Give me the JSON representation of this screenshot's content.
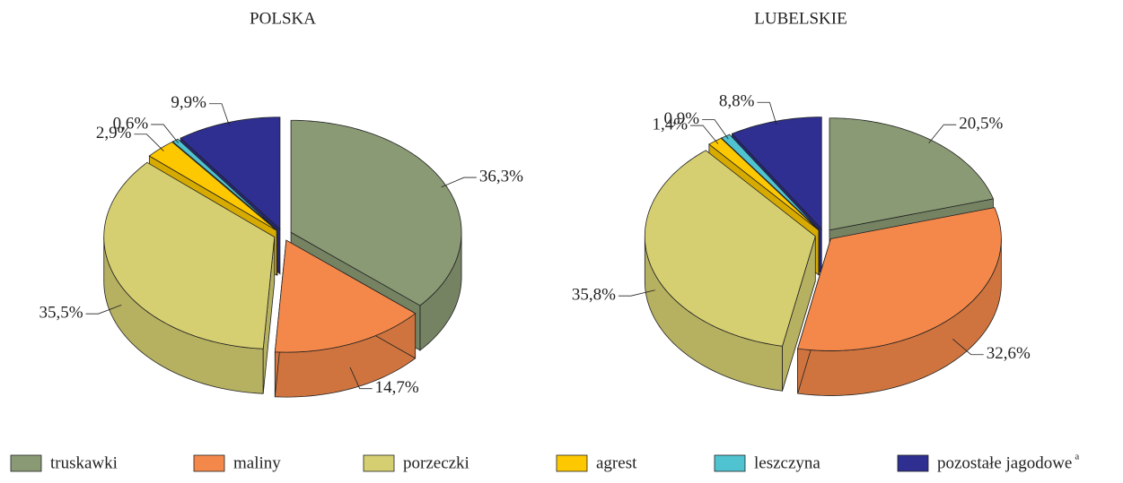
{
  "chart_data": [
    {
      "type": "pie",
      "title": "POLSKA",
      "values": [
        36.3,
        14.7,
        35.5,
        2.9,
        0.6,
        9.9
      ],
      "value_labels": [
        "36,3%",
        "14,7%",
        "35,5%",
        "2,9%",
        "0,6%",
        "9,9%"
      ]
    },
    {
      "type": "pie",
      "title": "LUBELSKIE",
      "values": [
        20.5,
        32.6,
        35.8,
        1.4,
        0.9,
        8.8
      ],
      "value_labels": [
        "20,5%",
        "32,6%",
        "35,8%",
        "1,4%",
        "0,9%",
        "8,8%"
      ]
    }
  ],
  "legend": {
    "labels": [
      "truskawki",
      "maliny",
      "porzeczki",
      "agrest",
      "leszczyna",
      "pozostałe jagodowe"
    ],
    "colors": [
      "#8a9a74",
      "#f4884a",
      "#d6cf72",
      "#fdc800",
      "#4fc3cf",
      "#2e2f90"
    ],
    "footnote": "a"
  }
}
